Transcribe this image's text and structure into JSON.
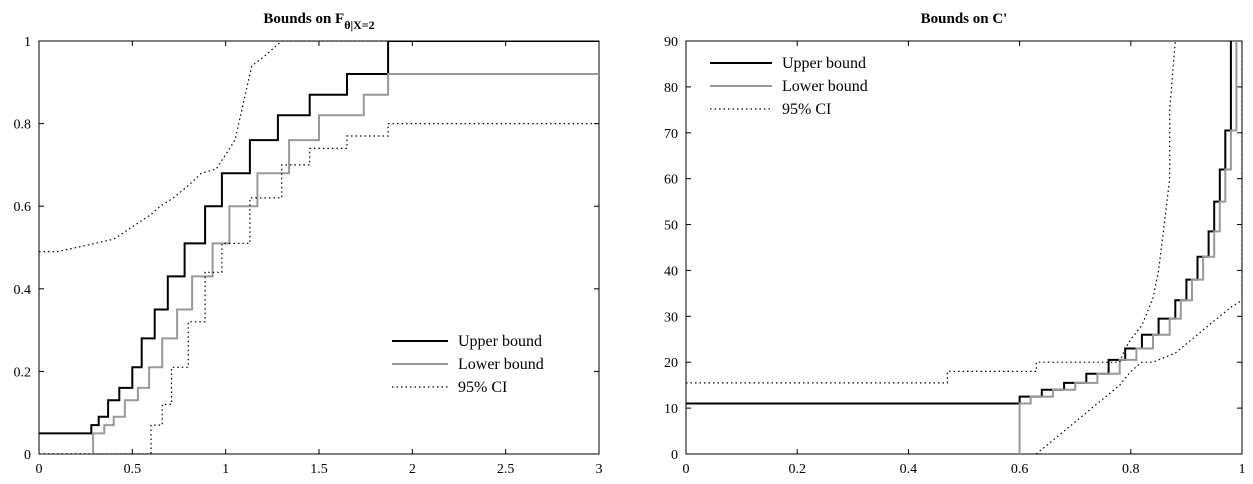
{
  "chart_data": [
    {
      "type": "line",
      "title": "Bounds on F",
      "title_subscript": "θ|X=2",
      "xlabel": "",
      "ylabel": "",
      "xlim": [
        0,
        3
      ],
      "ylim": [
        0,
        1
      ],
      "xticks": [
        0,
        0.5,
        1,
        1.5,
        2,
        2.5,
        3
      ],
      "xtick_labels": [
        "0",
        "0.5",
        "1",
        "1.5",
        "2",
        "2.5",
        "3"
      ],
      "yticks": [
        0,
        0.2,
        0.4,
        0.6,
        0.8,
        1
      ],
      "ytick_labels": [
        "0",
        "0.2",
        "0.4",
        "0.6",
        "0.8",
        "1"
      ],
      "grid": false,
      "legend_position": "bottom-right",
      "series": [
        {
          "name": "Upper bound",
          "color": "#000000",
          "style": "solid",
          "x": [
            0,
            0.28,
            0.28,
            0.32,
            0.32,
            0.37,
            0.37,
            0.43,
            0.43,
            0.5,
            0.5,
            0.55,
            0.55,
            0.62,
            0.62,
            0.69,
            0.69,
            0.78,
            0.78,
            0.89,
            0.89,
            0.98,
            0.98,
            1.13,
            1.13,
            1.28,
            1.28,
            1.45,
            1.45,
            1.65,
            1.65,
            1.87,
            1.87,
            3
          ],
          "y": [
            0.05,
            0.05,
            0.07,
            0.07,
            0.09,
            0.09,
            0.13,
            0.13,
            0.16,
            0.16,
            0.21,
            0.21,
            0.28,
            0.28,
            0.35,
            0.35,
            0.43,
            0.43,
            0.51,
            0.51,
            0.6,
            0.6,
            0.68,
            0.68,
            0.76,
            0.76,
            0.82,
            0.82,
            0.87,
            0.87,
            0.92,
            0.92,
            1.0,
            1.0
          ]
        },
        {
          "name": "Lower bound",
          "color": "#999999",
          "style": "solid",
          "x": [
            0,
            0.29,
            0.29,
            0.35,
            0.35,
            0.4,
            0.4,
            0.46,
            0.46,
            0.53,
            0.53,
            0.59,
            0.59,
            0.66,
            0.66,
            0.74,
            0.74,
            0.82,
            0.82,
            0.93,
            0.93,
            1.02,
            1.02,
            1.17,
            1.17,
            1.34,
            1.34,
            1.5,
            1.5,
            1.74,
            1.74,
            1.87,
            1.87,
            3
          ],
          "y": [
            0,
            0,
            0.05,
            0.05,
            0.07,
            0.07,
            0.09,
            0.09,
            0.13,
            0.13,
            0.16,
            0.16,
            0.21,
            0.21,
            0.28,
            0.28,
            0.35,
            0.35,
            0.43,
            0.43,
            0.51,
            0.51,
            0.6,
            0.6,
            0.68,
            0.68,
            0.76,
            0.76,
            0.82,
            0.82,
            0.87,
            0.87,
            0.92,
            0.92
          ]
        },
        {
          "name": "95% CI",
          "color": "#000000",
          "style": "dotted",
          "x": [
            0,
            0.1,
            0.3,
            0.4,
            0.5,
            0.6,
            0.65,
            0.72,
            0.8,
            0.87,
            0.95,
            1.05,
            1.14,
            1.2,
            1.3,
            1.4,
            1.55,
            1.7,
            1.85,
            2.0,
            3
          ],
          "y": [
            0.49,
            0.49,
            0.51,
            0.52,
            0.55,
            0.58,
            0.6,
            0.62,
            0.65,
            0.68,
            0.69,
            0.76,
            0.94,
            0.96,
            1.0,
            1.0,
            1.0,
            1.0,
            1.0,
            1.0,
            1.0
          ]
        },
        {
          "name": "",
          "color": "#000000",
          "style": "dotted",
          "x": [
            0,
            0.6,
            0.6,
            0.66,
            0.66,
            0.71,
            0.71,
            0.8,
            0.8,
            0.89,
            0.89,
            0.98,
            0.98,
            1.13,
            1.13,
            1.3,
            1.3,
            1.45,
            1.45,
            1.65,
            1.65,
            1.87,
            1.87,
            3
          ],
          "y": [
            0,
            0,
            0.07,
            0.07,
            0.12,
            0.12,
            0.21,
            0.21,
            0.32,
            0.32,
            0.44,
            0.44,
            0.51,
            0.51,
            0.62,
            0.62,
            0.7,
            0.7,
            0.74,
            0.74,
            0.77,
            0.77,
            0.8,
            0.8
          ]
        }
      ]
    },
    {
      "type": "line",
      "title": "Bounds on C'",
      "xlabel": "",
      "ylabel": "",
      "xlim": [
        0,
        1
      ],
      "ylim": [
        0,
        90
      ],
      "xticks": [
        0,
        0.2,
        0.4,
        0.6,
        0.8,
        1
      ],
      "xtick_labels": [
        "0",
        "0.2",
        "0.4",
        "0.6",
        "0.8",
        "1"
      ],
      "yticks": [
        0,
        10,
        20,
        30,
        40,
        50,
        60,
        70,
        80,
        90
      ],
      "ytick_labels": [
        "0",
        "10",
        "20",
        "30",
        "40",
        "50",
        "60",
        "70",
        "80",
        "90"
      ],
      "grid": false,
      "legend_position": "top-left",
      "series": [
        {
          "name": "Upper bound",
          "color": "#000000",
          "style": "solid",
          "x": [
            0,
            0.6,
            0.6,
            0.64,
            0.64,
            0.68,
            0.68,
            0.72,
            0.72,
            0.76,
            0.76,
            0.79,
            0.79,
            0.82,
            0.82,
            0.85,
            0.85,
            0.88,
            0.88,
            0.9,
            0.9,
            0.92,
            0.92,
            0.94,
            0.94,
            0.95,
            0.95,
            0.96,
            0.96,
            0.97,
            0.97,
            0.98,
            0.98
          ],
          "y": [
            11,
            11,
            12.5,
            12.5,
            14,
            14,
            15.5,
            15.5,
            17.5,
            17.5,
            20.5,
            20.5,
            23,
            23,
            26,
            26,
            29.5,
            29.5,
            33.5,
            33.5,
            38,
            38,
            43,
            43,
            48.5,
            48.5,
            55,
            55,
            62,
            62,
            70.5,
            70.5,
            90
          ]
        },
        {
          "name": "Lower bound",
          "color": "#999999",
          "style": "solid",
          "x": [
            0.6,
            0.6,
            0.62,
            0.62,
            0.66,
            0.66,
            0.7,
            0.7,
            0.74,
            0.74,
            0.78,
            0.78,
            0.81,
            0.81,
            0.84,
            0.84,
            0.87,
            0.87,
            0.89,
            0.89,
            0.91,
            0.91,
            0.93,
            0.93,
            0.95,
            0.95,
            0.96,
            0.96,
            0.97,
            0.97,
            0.98,
            0.98,
            0.99,
            0.99
          ],
          "y": [
            0,
            11,
            11,
            12.5,
            12.5,
            14,
            14,
            15.5,
            15.5,
            17.5,
            17.5,
            20.5,
            20.5,
            23,
            23,
            26,
            26,
            29.5,
            29.5,
            33.5,
            33.5,
            38,
            38,
            43,
            43,
            48.5,
            48.5,
            55,
            55,
            62,
            62,
            70.5,
            70.5,
            90
          ]
        },
        {
          "name": "95% CI",
          "color": "#000000",
          "style": "dotted",
          "x": [
            0,
            0.47,
            0.47,
            0.6,
            0.62,
            0.63,
            0.63,
            0.78,
            0.79,
            0.8,
            0.82,
            0.84,
            0.85,
            0.86,
            0.87,
            0.87,
            0.88
          ],
          "y": [
            15.5,
            15.5,
            18,
            18,
            18,
            18,
            20,
            20,
            23,
            25,
            28,
            34,
            40,
            50,
            60,
            75,
            90
          ]
        },
        {
          "name": "",
          "color": "#000000",
          "style": "dotted",
          "x": [
            0.63,
            0.66,
            0.7,
            0.74,
            0.78,
            0.8,
            0.82,
            0.84,
            0.86,
            0.88,
            0.9,
            0.92,
            0.94,
            0.96,
            0.98,
            1.0,
            1.0
          ],
          "y": [
            0,
            3,
            7,
            11,
            15,
            18,
            20,
            20,
            21,
            22,
            24,
            26,
            28,
            30,
            32,
            33.5,
            90
          ]
        }
      ]
    }
  ]
}
